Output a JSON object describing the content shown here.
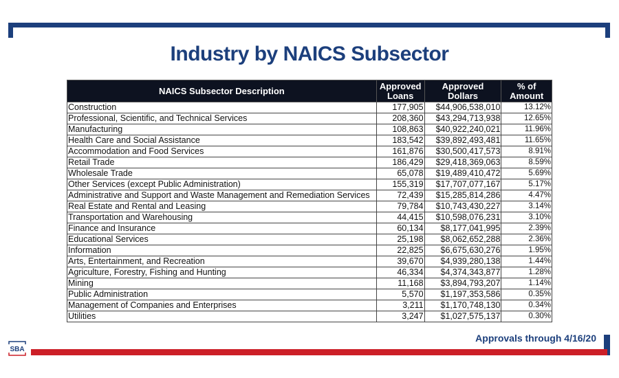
{
  "title": "Industry by NAICS Subsector",
  "table": {
    "headers": [
      "NAICS Subsector Description",
      "Approved Loans",
      "Approved Dollars",
      "% of Amount"
    ],
    "rows": [
      [
        "Construction",
        "177,905",
        "$44,906,538,010",
        "13.12%"
      ],
      [
        "Professional, Scientific, and Technical Services",
        "208,360",
        "$43,294,713,938",
        "12.65%"
      ],
      [
        "Manufacturing",
        "108,863",
        "$40,922,240,021",
        "11.96%"
      ],
      [
        "Health Care and Social Assistance",
        "183,542",
        "$39,892,493,481",
        "11.65%"
      ],
      [
        "Accommodation and Food Services",
        "161,876",
        "$30,500,417,573",
        "8.91%"
      ],
      [
        "Retail Trade",
        "186,429",
        "$29,418,369,063",
        "8.59%"
      ],
      [
        "Wholesale Trade",
        "65,078",
        "$19,489,410,472",
        "5.69%"
      ],
      [
        "Other Services (except Public Administration)",
        "155,319",
        "$17,707,077,167",
        "5.17%"
      ],
      [
        "Administrative and Support and Waste Management and Remediation Services",
        "72,439",
        "$15,285,814,286",
        "4.47%"
      ],
      [
        "Real Estate and Rental and Leasing",
        "79,784",
        "$10,743,430,227",
        "3.14%"
      ],
      [
        "Transportation and Warehousing",
        "44,415",
        "$10,598,076,231",
        "3.10%"
      ],
      [
        "Finance and Insurance",
        "60,134",
        "$8,177,041,995",
        "2.39%"
      ],
      [
        "Educational Services",
        "25,198",
        "$8,062,652,288",
        "2.36%"
      ],
      [
        "Information",
        "22,825",
        "$6,675,630,276",
        "1.95%"
      ],
      [
        "Arts, Entertainment, and Recreation",
        "39,670",
        "$4,939,280,138",
        "1.44%"
      ],
      [
        "Agriculture, Forestry, Fishing and Hunting",
        "46,334",
        "$4,374,343,877",
        "1.28%"
      ],
      [
        "Mining",
        "11,168",
        "$3,894,793,207",
        "1.14%"
      ],
      [
        "Public Administration",
        "5,570",
        "$1,197,353,586",
        "0.35%"
      ],
      [
        "Management of Companies and Enterprises",
        "3,211",
        "$1,170,748,130",
        "0.34%"
      ],
      [
        "Utilities",
        "3,247",
        "$1,027,575,137",
        "0.30%"
      ]
    ]
  },
  "footer": {
    "note": "Approvals through 4/16/20",
    "logo_text": "SBA"
  },
  "colors": {
    "navy": "#1c3f7c",
    "red": "#cc1f27",
    "header_bg": "#0d1220"
  }
}
